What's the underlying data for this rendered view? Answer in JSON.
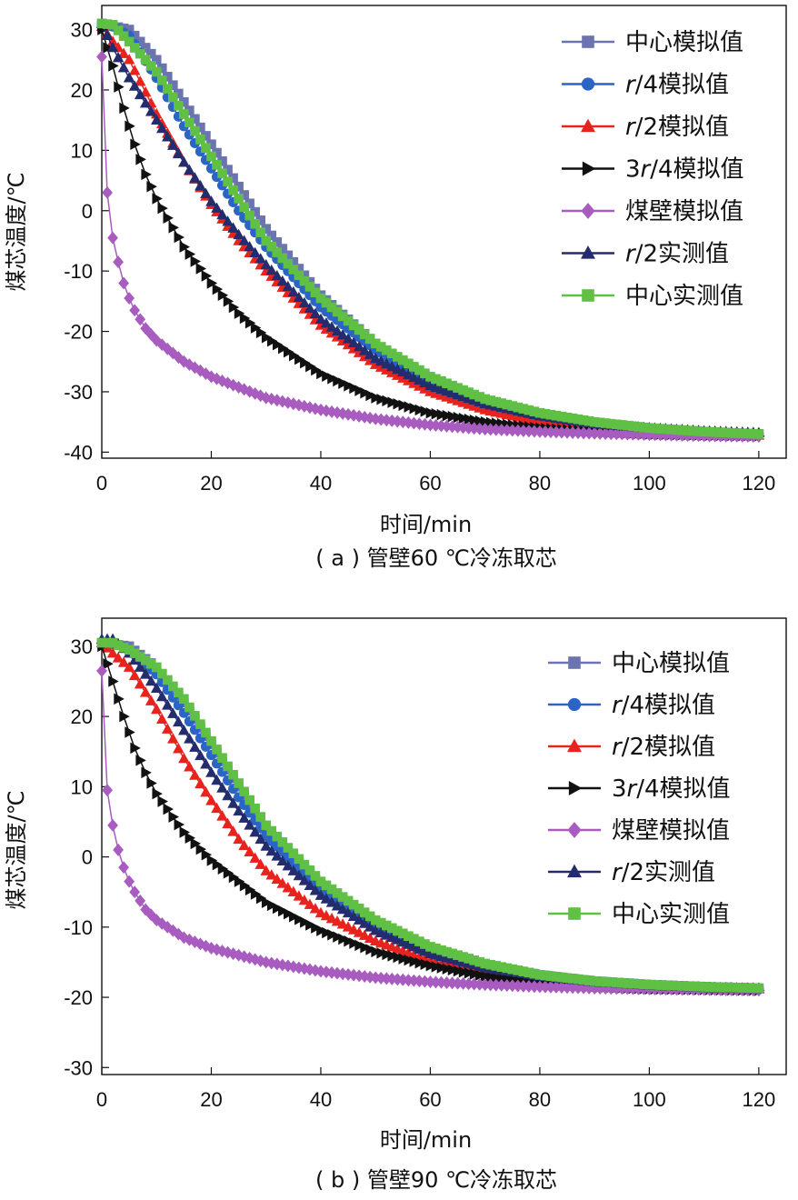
{
  "chart_data": [
    {
      "type": "line",
      "caption": "( a ) 管壁60 ℃冷冻取芯",
      "xlabel": "时间/min",
      "ylabel": "煤芯温度/℃",
      "xlim": [
        0,
        125
      ],
      "ylim": [
        -41,
        34
      ],
      "xticks": [
        0,
        20,
        40,
        60,
        80,
        100,
        120
      ],
      "yticks": [
        30,
        20,
        10,
        0,
        -10,
        -20,
        -30,
        -40
      ],
      "grid": false,
      "legend_position": "top-right",
      "series": [
        {
          "name": "中心模拟值",
          "color": "#6b74b0",
          "marker": "square",
          "x": [
            0,
            5,
            10,
            15,
            20,
            25,
            30,
            40,
            50,
            60,
            70,
            80,
            90,
            100,
            110,
            120
          ],
          "y": [
            31,
            30,
            25,
            18,
            11,
            4,
            -3,
            -14,
            -22,
            -28,
            -32,
            -34,
            -35.5,
            -36.2,
            -36.8,
            -37
          ]
        },
        {
          "name": "r/4模拟值",
          "color": "#2a64c4",
          "marker": "circle",
          "x": [
            0,
            2,
            5,
            10,
            15,
            20,
            25,
            30,
            40,
            50,
            60,
            70,
            80,
            90,
            100,
            110,
            120
          ],
          "y": [
            31,
            30.5,
            29,
            22,
            14,
            7,
            0,
            -6,
            -16,
            -23,
            -28.5,
            -32,
            -34.2,
            -35.5,
            -36.3,
            -36.8,
            -37
          ]
        },
        {
          "name": "r/2模拟值",
          "color": "#e8231e",
          "marker": "triangle-up",
          "x": [
            0,
            2,
            5,
            10,
            15,
            20,
            25,
            30,
            40,
            50,
            60,
            70,
            80,
            90,
            100,
            110,
            120
          ],
          "y": [
            30.5,
            28,
            25,
            16,
            8,
            1,
            -5,
            -10,
            -19,
            -25.5,
            -30,
            -33,
            -35,
            -36,
            -36.6,
            -37,
            -37.2
          ]
        },
        {
          "name": "3r/4模拟值",
          "color": "#111111",
          "marker": "triangle-right",
          "x": [
            0,
            2,
            4,
            6,
            8,
            10,
            15,
            20,
            25,
            30,
            40,
            50,
            60,
            70,
            80,
            90,
            100,
            110,
            120
          ],
          "y": [
            30,
            24,
            17,
            11,
            6,
            2,
            -6,
            -12,
            -17,
            -21,
            -27,
            -31,
            -33.5,
            -35,
            -36,
            -36.6,
            -37,
            -37.2,
            -37.3
          ]
        },
        {
          "name": "煤壁模拟值",
          "color": "#a85cc0",
          "marker": "diamond",
          "x": [
            0,
            1,
            2,
            3,
            4,
            5,
            6,
            8,
            10,
            15,
            20,
            30,
            40,
            50,
            60,
            70,
            80,
            90,
            100,
            110,
            120
          ],
          "y": [
            25.5,
            3,
            -4.5,
            -8.5,
            -12,
            -14.5,
            -16.5,
            -19.5,
            -21.5,
            -25,
            -27.5,
            -31,
            -33,
            -34.5,
            -35.5,
            -36.2,
            -36.6,
            -36.9,
            -37.1,
            -37.3,
            -37.4
          ]
        },
        {
          "name": "r/2实测值",
          "color": "#232d6e",
          "marker": "triangle-up",
          "x": [
            0,
            2,
            5,
            10,
            15,
            20,
            25,
            30,
            40,
            50,
            60,
            70,
            80,
            90,
            100,
            110,
            120
          ],
          "y": [
            31,
            27,
            22,
            15,
            8,
            1.5,
            -4,
            -9,
            -18,
            -24.5,
            -29,
            -32,
            -34,
            -35.3,
            -36,
            -36.5,
            -36.8
          ]
        },
        {
          "name": "中心实测值",
          "color": "#5fc043",
          "marker": "square",
          "x": [
            0,
            2,
            5,
            10,
            15,
            20,
            25,
            30,
            40,
            50,
            60,
            70,
            80,
            90,
            100,
            110,
            120
          ],
          "y": [
            31,
            30.8,
            28,
            23,
            16,
            9,
            2,
            -5,
            -14.5,
            -22,
            -27.5,
            -31.2,
            -33.5,
            -35,
            -36,
            -36.6,
            -37
          ]
        }
      ]
    },
    {
      "type": "line",
      "caption": "( b ) 管壁90 ℃冷冻取芯",
      "xlabel": "时间/min",
      "ylabel": "煤芯温度/℃",
      "xlim": [
        0,
        125
      ],
      "ylim": [
        -31,
        34
      ],
      "xticks": [
        0,
        20,
        40,
        60,
        80,
        100,
        120
      ],
      "yticks": [
        30,
        20,
        10,
        0,
        -10,
        -20,
        -30
      ],
      "grid": false,
      "legend_position": "top-right",
      "series": [
        {
          "name": "中心模拟值",
          "color": "#6b74b0",
          "marker": "square",
          "x": [
            0,
            5,
            10,
            15,
            20,
            25,
            30,
            40,
            50,
            60,
            70,
            80,
            90,
            100,
            110,
            120
          ],
          "y": [
            30.5,
            30,
            27,
            22,
            16,
            10,
            4,
            -4,
            -9.5,
            -13,
            -15.3,
            -16.8,
            -17.7,
            -18.2,
            -18.5,
            -18.7
          ]
        },
        {
          "name": "r/4模拟值",
          "color": "#2a64c4",
          "marker": "circle",
          "x": [
            0,
            2,
            5,
            10,
            15,
            20,
            25,
            30,
            40,
            50,
            60,
            70,
            80,
            90,
            100,
            110,
            120
          ],
          "y": [
            30.5,
            30.5,
            29.5,
            26,
            20.5,
            14.5,
            8.5,
            3,
            -4.5,
            -9.5,
            -13,
            -15.3,
            -16.8,
            -17.7,
            -18.2,
            -18.5,
            -18.7
          ]
        },
        {
          "name": "r/2模拟值",
          "color": "#e8231e",
          "marker": "triangle-up",
          "x": [
            0,
            2,
            5,
            10,
            15,
            20,
            25,
            30,
            40,
            50,
            60,
            70,
            80,
            90,
            100,
            110,
            120
          ],
          "y": [
            30.5,
            29,
            27,
            21,
            14,
            8,
            2.5,
            -2,
            -8,
            -12,
            -14.8,
            -16.5,
            -17.5,
            -18.1,
            -18.4,
            -18.6,
            -18.7
          ]
        },
        {
          "name": "3r/4模拟值",
          "color": "#111111",
          "marker": "triangle-right",
          "x": [
            0,
            2,
            4,
            6,
            8,
            10,
            15,
            20,
            25,
            30,
            40,
            50,
            60,
            70,
            80,
            90,
            100,
            110,
            120
          ],
          "y": [
            30,
            25,
            20,
            15.5,
            12,
            9,
            3.5,
            -0.5,
            -3.5,
            -6.5,
            -10.5,
            -13.5,
            -15.5,
            -17,
            -18,
            -18.5,
            -18.8,
            -18.9,
            -19
          ]
        },
        {
          "name": "煤壁模拟值",
          "color": "#a85cc0",
          "marker": "diamond",
          "x": [
            0,
            1,
            2,
            3,
            4,
            5,
            6,
            8,
            10,
            15,
            20,
            30,
            40,
            50,
            60,
            70,
            80,
            90,
            100,
            110,
            120
          ],
          "y": [
            26.5,
            9.5,
            4.5,
            1,
            -1.5,
            -3.5,
            -5,
            -7.5,
            -9,
            -11.5,
            -13,
            -15,
            -16.3,
            -17.2,
            -17.8,
            -18.2,
            -18.5,
            -18.7,
            -18.8,
            -18.9,
            -19
          ]
        },
        {
          "name": "r/2实测值",
          "color": "#232d6e",
          "marker": "triangle-up",
          "x": [
            0,
            2,
            5,
            10,
            15,
            20,
            25,
            30,
            40,
            50,
            60,
            70,
            80,
            90,
            100,
            110,
            120
          ],
          "y": [
            31,
            31,
            29,
            24,
            18,
            12,
            6.5,
            1.5,
            -5.5,
            -10.5,
            -13.8,
            -15.8,
            -17,
            -17.8,
            -18.3,
            -18.6,
            -18.8
          ]
        },
        {
          "name": "中心实测值",
          "color": "#5fc043",
          "marker": "square",
          "x": [
            0,
            2,
            5,
            10,
            15,
            20,
            25,
            30,
            40,
            50,
            60,
            70,
            80,
            90,
            100,
            110,
            120
          ],
          "y": [
            30.5,
            30.5,
            29.5,
            27,
            22.5,
            16.5,
            10.5,
            4.5,
            -3.5,
            -9,
            -12.8,
            -15.2,
            -16.8,
            -17.7,
            -18.2,
            -18.5,
            -18.7
          ]
        }
      ]
    }
  ]
}
